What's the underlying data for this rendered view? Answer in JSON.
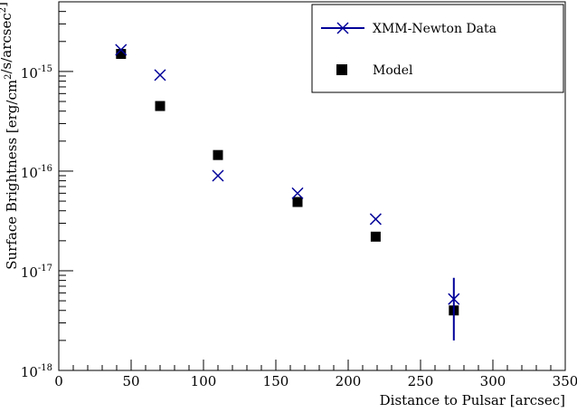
{
  "chart_data": {
    "type": "scatter",
    "title": "",
    "xlabel": "Distance to Pulsar [arcsec]",
    "ylabel": "Surface Brightness [erg/cm²/s/arcsec²]",
    "xlim": [
      0,
      350
    ],
    "ylim": [
      1e-18,
      5e-15
    ],
    "yscale": "log",
    "xticks": [
      0,
      50,
      100,
      150,
      200,
      250,
      300,
      350
    ],
    "ytick_decades": [
      -18,
      -17,
      -16,
      -15
    ],
    "legend_position": "top-right",
    "series": [
      {
        "name": "XMM-Newton Data",
        "marker": "x",
        "color": "#000099",
        "x": [
          43,
          70,
          110,
          165,
          219,
          273
        ],
        "y": [
          1.65e-15,
          9.2e-16,
          9e-17,
          6e-17,
          3.3e-17,
          5.2e-18
        ],
        "yerr_low": [
          null,
          null,
          null,
          null,
          null,
          2e-18
        ],
        "yerr_high": [
          null,
          null,
          null,
          null,
          null,
          8.5e-18
        ]
      },
      {
        "name": "Model",
        "marker": "square",
        "color": "#000000",
        "x": [
          43,
          70,
          110,
          165,
          219,
          273
        ],
        "y": [
          1.5e-15,
          4.5e-16,
          1.45e-16,
          4.9e-17,
          2.2e-17,
          4e-18
        ]
      }
    ]
  }
}
